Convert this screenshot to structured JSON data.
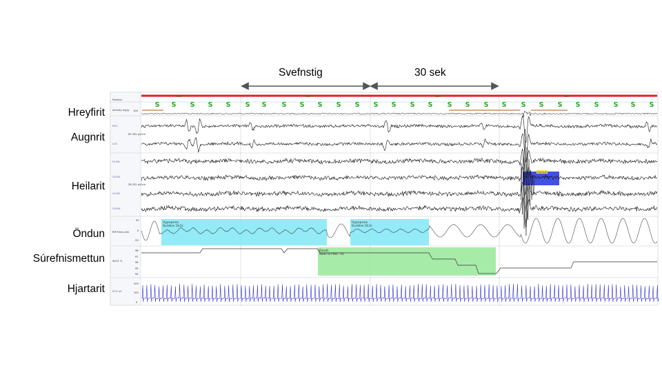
{
  "annotations": {
    "epoch_label": "Svefnstig",
    "duration_label": "30 sek"
  },
  "channel_labels": [
    {
      "key": "hreyfirit",
      "text": "Hreyfirit"
    },
    {
      "key": "augnrit",
      "text": "Augnrit"
    },
    {
      "key": "heilarit",
      "text": "Heilarit"
    },
    {
      "key": "ondun",
      "text": "Öndun"
    },
    {
      "key": "surefnismettun",
      "text": "Súrefnismettun"
    },
    {
      "key": "hjartarit",
      "text": "Hjartarit"
    }
  ],
  "recording": {
    "position_label": "Position",
    "stage_symbol": "S",
    "stage_bar_label": "REM",
    "activity_label": "Activity mg/g",
    "activity_value": "100",
    "eog_channels": [
      "ROC",
      "LOC"
    ],
    "eog_scale": "65.332 µV/cm",
    "eeg_channels": [
      "F4-M1",
      "O2-M1",
      "C4-M1",
      "O2-M1"
    ],
    "eeg_scale": "28.232 µV/cm",
    "flow_label": "RIP-Flow µV/k",
    "flow_ticks": [
      "50",
      "0",
      "-50"
    ],
    "spo2_label": "SpO2 %",
    "spo2_ticks": [
      "98",
      "97",
      "96",
      "95",
      "94"
    ],
    "ecg_label": "ECG µV",
    "ecg_ticks": [
      "200",
      "100",
      "0"
    ],
    "events": {
      "hypopnea_title": "Hypopnea",
      "hypopnea_detail": "Duration 18.2s",
      "desat_title": "Desat",
      "desat_detail": "Nadir to Peak: 3%",
      "arousal_title": "Arousal"
    }
  },
  "colors": {
    "stage_bar": "#dd2222",
    "stage_symbol": "#22aa22",
    "hypopnea": "#7fe8f6",
    "desat": "#98e89a",
    "arousal": "#2233dd",
    "ecg": "#2222cc",
    "trace": "#111111",
    "channel_label": "#5555aa",
    "activity_marker": "#bb7744"
  }
}
